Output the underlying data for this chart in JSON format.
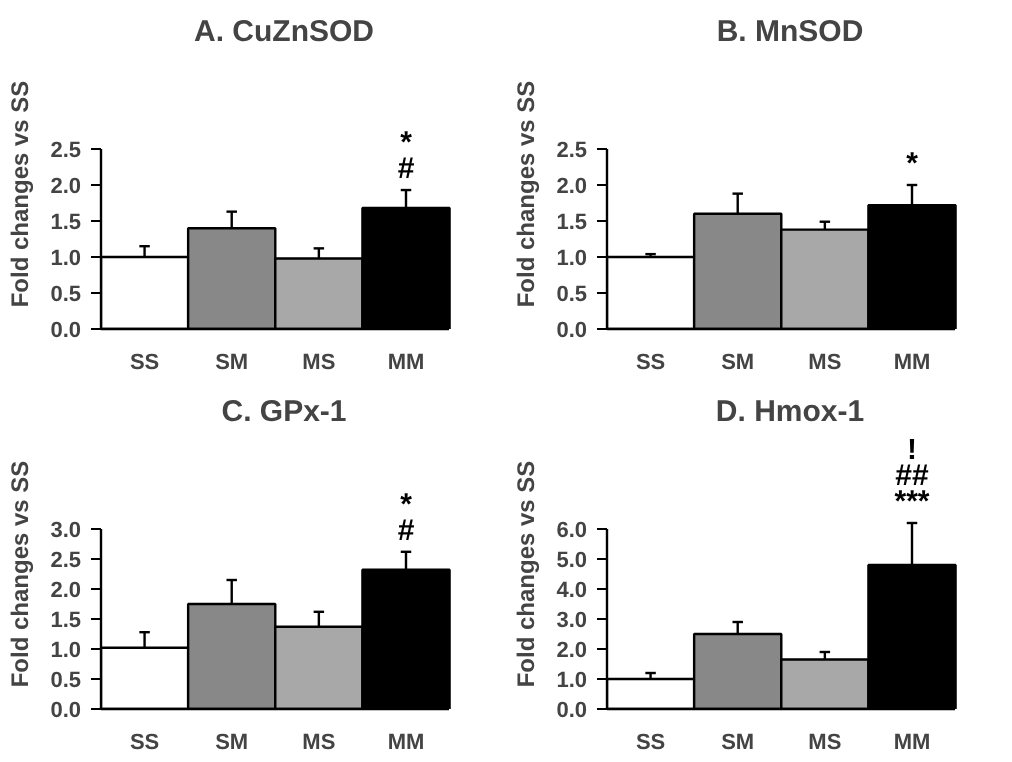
{
  "chart_data": [
    {
      "type": "bar",
      "title": "A. CuZnSOD",
      "ylabel": "Fold changes vs SS",
      "categories": [
        "SS",
        "SM",
        "MS",
        "MM"
      ],
      "values": [
        1.0,
        1.4,
        0.98,
        1.68
      ],
      "errors": [
        0.15,
        0.23,
        0.14,
        0.25
      ],
      "colors": [
        "#ffffff",
        "#888888",
        "#a8a8a8",
        "#000000"
      ],
      "ylim": [
        0,
        2.5
      ],
      "yticks": [
        {
          "value": 0,
          "label": "0.0"
        },
        0.5,
        {
          "value": 1,
          "label": "1.0"
        },
        1.5,
        {
          "value": 2,
          "label": "2.0"
        },
        2.5
      ],
      "annotations": [
        "#",
        "*"
      ],
      "grid": false
    },
    {
      "type": "bar",
      "title": "B. MnSOD",
      "ylabel": "Fold changes vs SS",
      "categories": [
        "SS",
        "SM",
        "MS",
        "MM"
      ],
      "values": [
        1.0,
        1.6,
        1.38,
        1.72
      ],
      "errors": [
        0.04,
        0.28,
        0.11,
        0.28
      ],
      "colors": [
        "#ffffff",
        "#888888",
        "#a8a8a8",
        "#000000"
      ],
      "ylim": [
        0,
        2.5
      ],
      "yticks": [
        {
          "value": 0,
          "label": "0.0"
        },
        0.5,
        {
          "value": 1,
          "label": "1.0"
        },
        1.5,
        {
          "value": 2,
          "label": "2.0"
        },
        2.5
      ],
      "annotations": [
        "*"
      ],
      "grid": false
    },
    {
      "type": "bar",
      "title": "C. GPx-1",
      "ylabel": "Fold changes vs SS",
      "categories": [
        "SS",
        "SM",
        "MS",
        "MM"
      ],
      "values": [
        1.02,
        1.75,
        1.37,
        2.32
      ],
      "errors": [
        0.26,
        0.4,
        0.25,
        0.3
      ],
      "colors": [
        "#ffffff",
        "#888888",
        "#a8a8a8",
        "#000000"
      ],
      "ylim": [
        0,
        3
      ],
      "yticks": [
        {
          "value": 0,
          "label": "0.0"
        },
        0.5,
        {
          "value": 1,
          "label": "1.0"
        },
        1.5,
        {
          "value": 2,
          "label": "2.0"
        },
        2.5,
        {
          "value": 3,
          "label": "3.0"
        }
      ],
      "annotations": [
        "#",
        "*"
      ],
      "grid": false
    },
    {
      "type": "bar",
      "title": "D. Hmox-1",
      "ylabel": "Fold changes vs SS",
      "categories": [
        "SS",
        "SM",
        "MS",
        "MM"
      ],
      "values": [
        1.0,
        2.5,
        1.65,
        4.8
      ],
      "errors": [
        0.2,
        0.4,
        0.25,
        1.4
      ],
      "colors": [
        "#ffffff",
        "#888888",
        "#a8a8a8",
        "#000000"
      ],
      "ylim": [
        0,
        6
      ],
      "yticks": [
        {
          "value": 0,
          "label": "0.0"
        },
        {
          "value": 1,
          "label": "1.0"
        },
        {
          "value": 2,
          "label": "2.0"
        },
        {
          "value": 3,
          "label": "3.0"
        },
        {
          "value": 4,
          "label": "4.0"
        },
        {
          "value": 5,
          "label": "5.0"
        },
        {
          "value": 6,
          "label": "6.0"
        }
      ],
      "annotations": [
        "***",
        "##",
        "!"
      ],
      "grid": false
    }
  ]
}
